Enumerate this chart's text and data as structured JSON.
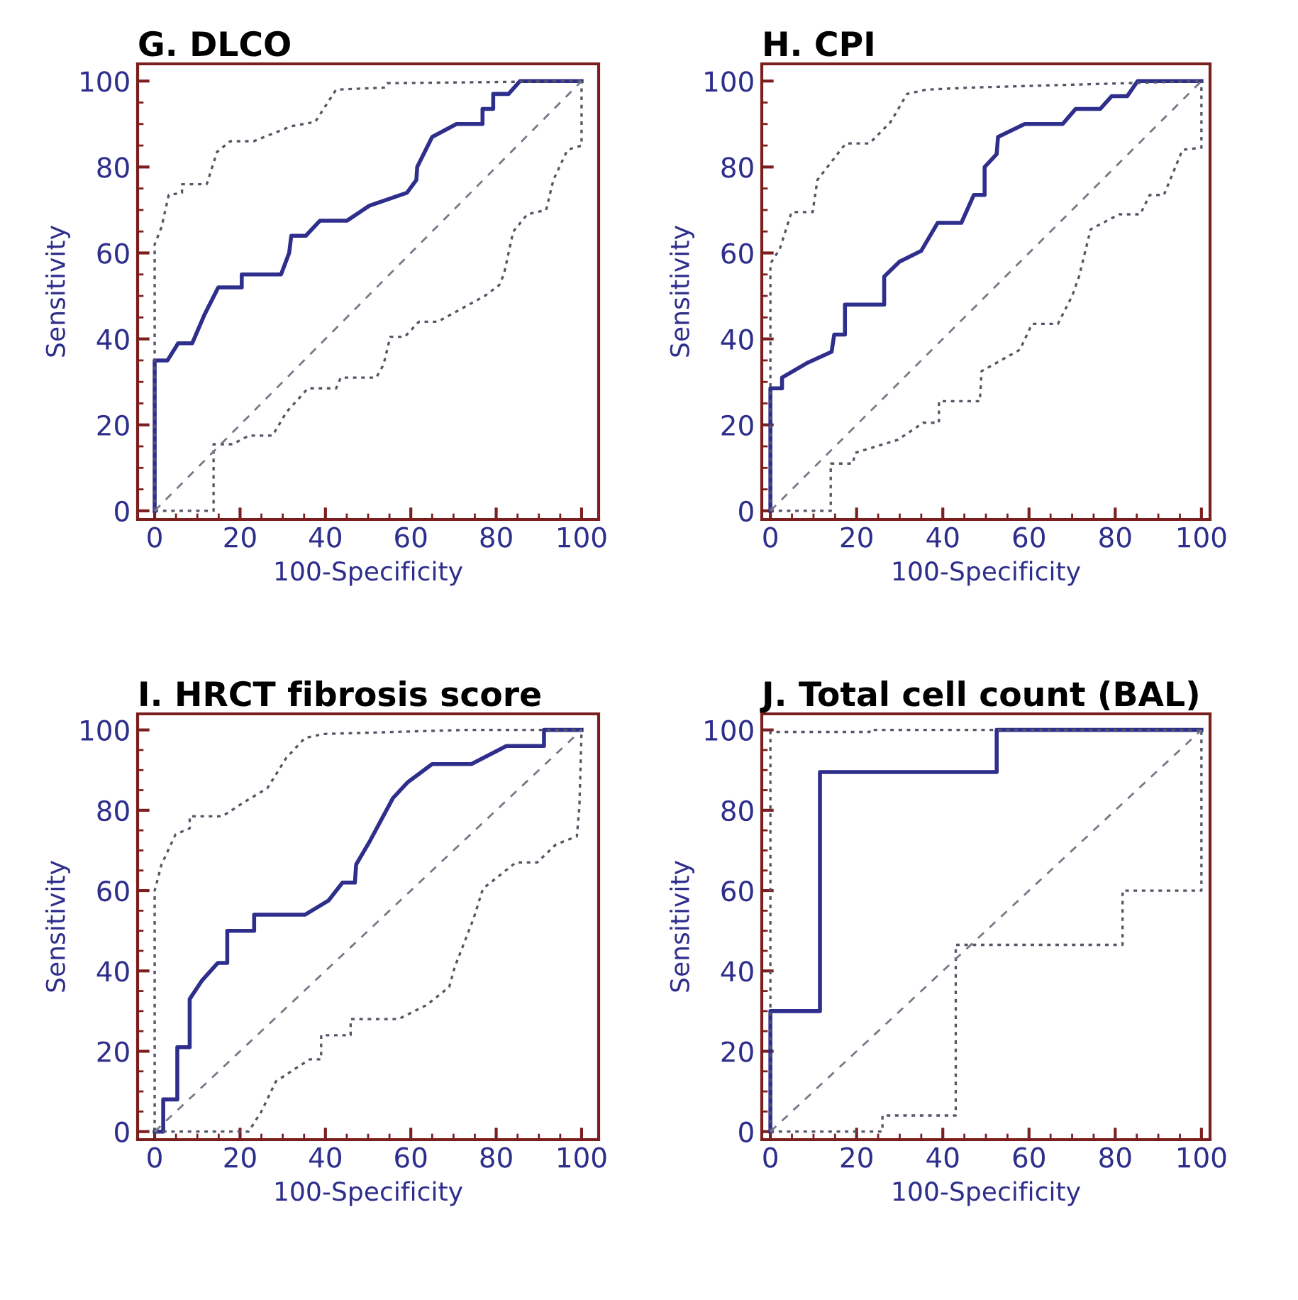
{
  "chart_data": [
    {
      "type": "line",
      "title": "G. DLCO",
      "xlabel": "100-Specificity",
      "ylabel": "Sensitivity",
      "xlim": [
        -4,
        104
      ],
      "ylim": [
        -2,
        104
      ],
      "xticks": [
        0,
        20,
        40,
        60,
        80,
        100
      ],
      "yticks": [
        0,
        20,
        40,
        60,
        80,
        100
      ],
      "grid": false,
      "legend": false,
      "marker": "none",
      "series": [
        {
          "color": "#2e2e8c",
          "line_style": "solid",
          "x": [
            0,
            0,
            3,
            5.5,
            8.8,
            11.6,
            14.9,
            20.4,
            20.4,
            29.6,
            31.5,
            32,
            35.4,
            38.7,
            45,
            50.3,
            59.1,
            61.3,
            61.5,
            65,
            70.7,
            76.8,
            76.8,
            79.3,
            79.3,
            82.9,
            85.6,
            100
          ],
          "values": [
            0,
            35,
            35,
            39,
            39,
            45.5,
            52,
            52,
            55,
            55,
            60,
            64,
            64,
            67.5,
            67.5,
            71,
            74,
            77,
            80,
            87,
            90,
            90,
            93.5,
            93.5,
            97,
            97,
            100,
            100
          ]
        },
        {
          "color": "#555566",
          "line_style": "dotted",
          "x": [
            0,
            0,
            1.6,
            3.3,
            6.4,
            6.4,
            12.2,
            14.6,
            17.7,
            23.2,
            32,
            37.6,
            42.5,
            54,
            54.5,
            100
          ],
          "values": [
            0,
            62,
            66,
            73.5,
            74,
            76,
            76,
            83.5,
            86,
            86,
            89.5,
            90.5,
            98,
            98.5,
            99.5,
            100
          ]
        },
        {
          "color": "#555566",
          "line_style": "dotted",
          "x": [
            0,
            13.8,
            13.8,
            18.2,
            22.1,
            27.6,
            30.9,
            35.9,
            42.5,
            43.6,
            51.9,
            53.6,
            55.2,
            58.6,
            61.9,
            66.3,
            77.3,
            80.7,
            81.8,
            84,
            87.3,
            91.7,
            93.4,
            96.7,
            100,
            100
          ],
          "values": [
            0,
            0,
            15.5,
            15.5,
            17.5,
            17.5,
            23,
            28.5,
            28.5,
            31,
            31,
            34,
            40.5,
            40.5,
            44,
            44,
            50,
            52.5,
            55,
            65,
            69,
            70,
            77,
            84,
            85,
            100
          ]
        },
        {
          "color": "#777788",
          "line_style": "dashed",
          "x": [
            0,
            100
          ],
          "values": [
            0,
            100
          ]
        }
      ]
    },
    {
      "type": "line",
      "title": "H. CPI",
      "xlabel": "100-Specificity",
      "ylabel": "Sensitivity",
      "xlim": [
        -2,
        102
      ],
      "ylim": [
        -2,
        104
      ],
      "xticks": [
        0,
        20,
        40,
        60,
        80,
        100
      ],
      "yticks": [
        0,
        20,
        40,
        60,
        80,
        100
      ],
      "grid": false,
      "legend": false,
      "marker": "none",
      "series": [
        {
          "color": "#2e2e8c",
          "line_style": "solid",
          "x": [
            0,
            0,
            2.7,
            2.7,
            8.7,
            14.2,
            14.8,
            17.3,
            17.3,
            26.4,
            26.4,
            30,
            35,
            38.8,
            44.3,
            47.2,
            49.7,
            49.7,
            52.5,
            52.8,
            59,
            67.8,
            70.8,
            76.5,
            79.2,
            82.8,
            85.2,
            100
          ],
          "values": [
            0,
            28.5,
            28.5,
            31,
            34.5,
            37,
            41,
            41,
            48,
            48,
            54.5,
            58,
            60.5,
            67,
            67,
            73.5,
            73.5,
            80,
            83,
            87,
            90,
            90,
            93.5,
            93.5,
            96.5,
            96.5,
            100,
            100
          ]
        },
        {
          "color": "#555566",
          "line_style": "dotted",
          "x": [
            0,
            0,
            2.2,
            4.9,
            9.8,
            10.9,
            17.5,
            23,
            27.9,
            31.7,
            36.1,
            47,
            100
          ],
          "values": [
            0,
            57.5,
            61,
            69.5,
            69.5,
            77,
            85.5,
            85.5,
            90.5,
            97,
            98,
            98.5,
            100
          ]
        },
        {
          "color": "#555566",
          "line_style": "dotted",
          "x": [
            0,
            14,
            14,
            19.1,
            19.7,
            29.5,
            35.5,
            39.1,
            39.1,
            48.6,
            49,
            57.9,
            60.7,
            66.7,
            70,
            71.6,
            74.3,
            80.9,
            85.8,
            88,
            91.3,
            95.6,
            100,
            100
          ],
          "values": [
            0,
            0,
            11,
            11,
            13.5,
            16.5,
            20.5,
            20.5,
            25.5,
            25.5,
            32.5,
            37.5,
            43.5,
            43.5,
            50,
            54.5,
            65.5,
            69,
            69,
            73.5,
            73.5,
            84,
            84.5,
            100
          ]
        },
        {
          "color": "#777788",
          "line_style": "dashed",
          "x": [
            0,
            100
          ],
          "values": [
            0,
            100
          ]
        }
      ]
    },
    {
      "type": "line",
      "title": "I. HRCT fibrosis score",
      "xlabel": "100-Specificity",
      "ylabel": "Sensitivity",
      "xlim": [
        -4,
        104
      ],
      "ylim": [
        -2,
        104
      ],
      "xticks": [
        0,
        20,
        40,
        60,
        80,
        100
      ],
      "yticks": [
        0,
        20,
        40,
        60,
        80,
        100
      ],
      "grid": false,
      "legend": false,
      "marker": "none",
      "series": [
        {
          "color": "#2e2e8c",
          "line_style": "solid",
          "x": [
            0,
            2,
            2,
            5.3,
            5.3,
            8.2,
            8.2,
            11,
            14.8,
            17,
            17,
            23.3,
            23.3,
            35.2,
            40.7,
            44,
            46.9,
            47.2,
            50.5,
            55.8,
            59.3,
            65,
            74.2,
            82.4,
            91.2,
            91.2,
            100
          ],
          "values": [
            0,
            0,
            8,
            8,
            21,
            21,
            33,
            37.5,
            42,
            42,
            50,
            50,
            54,
            54,
            57.5,
            62,
            62,
            66.5,
            72.5,
            83,
            87,
            91.5,
            91.5,
            96,
            96,
            100,
            100
          ]
        },
        {
          "color": "#555566",
          "line_style": "dotted",
          "x": [
            0,
            0,
            1.6,
            4.9,
            8.2,
            8.2,
            15.9,
            20.9,
            26.4,
            30.8,
            35.2,
            39.6,
            72.5,
            100
          ],
          "values": [
            0,
            60,
            66.5,
            74,
            75.5,
            78.5,
            78.5,
            82,
            85.5,
            93,
            98,
            99,
            100,
            100
          ]
        },
        {
          "color": "#555566",
          "line_style": "dotted",
          "x": [
            0,
            22,
            25,
            28.4,
            36.3,
            39,
            39,
            45.9,
            45.9,
            57.1,
            63.7,
            69,
            70.3,
            74.7,
            76.9,
            84.6,
            89.6,
            94,
            98.9,
            99.5,
            100
          ],
          "values": [
            0,
            0,
            5,
            12.5,
            18,
            18,
            24,
            24,
            28,
            28,
            31.5,
            36,
            41,
            53,
            60.5,
            67,
            67,
            71.5,
            73.5,
            81,
            100
          ]
        },
        {
          "color": "#777788",
          "line_style": "dashed",
          "x": [
            0,
            100
          ],
          "values": [
            0,
            100
          ]
        }
      ]
    },
    {
      "type": "line",
      "title": "J. Total cell count (BAL)",
      "xlabel": "100-Specificity",
      "ylabel": "Sensitivity",
      "xlim": [
        -2,
        102
      ],
      "ylim": [
        -2,
        104
      ],
      "xticks": [
        0,
        20,
        40,
        60,
        80,
        100
      ],
      "yticks": [
        0,
        20,
        40,
        60,
        80,
        100
      ],
      "grid": false,
      "legend": false,
      "marker": "none",
      "series": [
        {
          "color": "#2e2e8c",
          "line_style": "solid",
          "x": [
            0,
            0,
            11.5,
            11.5,
            52.5,
            52.5,
            100
          ],
          "values": [
            0,
            30,
            30,
            89.5,
            89.5,
            100,
            100
          ]
        },
        {
          "color": "#555566",
          "line_style": "dotted",
          "x": [
            0,
            0,
            23,
            23,
            100
          ],
          "values": [
            0,
            99.5,
            99.5,
            100,
            100
          ]
        },
        {
          "color": "#555566",
          "line_style": "dotted",
          "x": [
            0,
            26,
            26,
            43,
            43,
            81.7,
            81.7,
            100,
            100
          ],
          "values": [
            0,
            0,
            4,
            4,
            46.5,
            46.5,
            60,
            60,
            100
          ]
        },
        {
          "color": "#777788",
          "line_style": "dashed",
          "x": [
            0,
            100
          ],
          "values": [
            0,
            100
          ]
        }
      ]
    }
  ]
}
